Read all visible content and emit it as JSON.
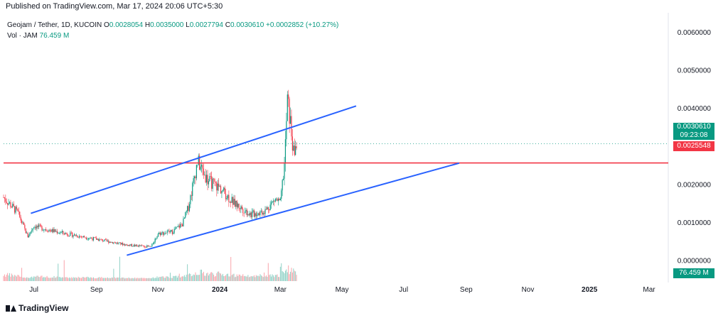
{
  "header": {
    "published": "Published on TradingView.com, Mar 17, 2024 20:06 UTC+5:30"
  },
  "legend": {
    "symbol": "Geojam / Tether, 1D, KUCOIN",
    "open_label": "O",
    "open": "0.0028054",
    "high_label": "H",
    "high": "0.0035000",
    "low_label": "L",
    "low": "0.0027794",
    "close_label": "C",
    "close": "0.0030610",
    "change": "+0.0002852 (+10.27%)",
    "vol_label": "Vol · JAM",
    "vol": "76.459 M"
  },
  "price_tags": {
    "current_price": "0.0030610",
    "countdown": "09:23:08",
    "hline_price": "0.0025548",
    "volume": "76.459 M"
  },
  "footer": {
    "brand": "TradingView"
  },
  "colors": {
    "up": "#089981",
    "down": "#f23645",
    "trendline": "#2962ff",
    "hline": "#f23645"
  },
  "chart_data": {
    "type": "candlestick",
    "x_axis": {
      "tick_labels": [
        "Jul",
        "Sep",
        "Nov",
        "2024",
        "Mar",
        "May",
        "Jul",
        "Sep",
        "Nov",
        "2025",
        "Mar"
      ],
      "tick_dates": [
        "2023-07-01",
        "2023-09-01",
        "2023-11-01",
        "2024-01-01",
        "2024-03-01",
        "2024-05-01",
        "2024-07-01",
        "2024-09-01",
        "2024-11-01",
        "2025-01-01",
        "2025-03-01"
      ],
      "range": [
        "2023-06-01",
        "2025-03-20"
      ]
    },
    "y_axis": {
      "tick_labels": [
        "0.0060000",
        "0.0050000",
        "0.0040000",
        "0.0020000",
        "0.0010000",
        "0.0000000"
      ],
      "tick_values": [
        0.006,
        0.005,
        0.004,
        0.002,
        0.001,
        0.0
      ],
      "range": [
        -0.00055,
        0.0065
      ]
    },
    "price_series": [
      {
        "date": "2023-06-01",
        "value": 0.00165
      },
      {
        "date": "2023-06-15",
        "value": 0.00125
      },
      {
        "date": "2023-06-25",
        "value": 0.00062
      },
      {
        "date": "2023-07-01",
        "value": 0.0009
      },
      {
        "date": "2023-07-15",
        "value": 0.0008
      },
      {
        "date": "2023-08-01",
        "value": 0.0007
      },
      {
        "date": "2023-09-01",
        "value": 0.00055
      },
      {
        "date": "2023-10-01",
        "value": 0.0004
      },
      {
        "date": "2023-10-25",
        "value": 0.00035
      },
      {
        "date": "2023-11-01",
        "value": 0.0007
      },
      {
        "date": "2023-11-15",
        "value": 0.00075
      },
      {
        "date": "2023-11-25",
        "value": 0.00095
      },
      {
        "date": "2023-12-01",
        "value": 0.0014
      },
      {
        "date": "2023-12-10",
        "value": 0.0026
      },
      {
        "date": "2023-12-20",
        "value": 0.0021
      },
      {
        "date": "2024-01-01",
        "value": 0.0019
      },
      {
        "date": "2024-01-15",
        "value": 0.0015
      },
      {
        "date": "2024-02-01",
        "value": 0.0012
      },
      {
        "date": "2024-02-15",
        "value": 0.0013
      },
      {
        "date": "2024-02-25",
        "value": 0.0016
      },
      {
        "date": "2024-03-01",
        "value": 0.0015
      },
      {
        "date": "2024-03-05",
        "value": 0.0025
      },
      {
        "date": "2024-03-08",
        "value": 0.0042
      },
      {
        "date": "2024-03-11",
        "value": 0.0036
      },
      {
        "date": "2024-03-14",
        "value": 0.0028
      },
      {
        "date": "2024-03-17",
        "value": 0.003061
      }
    ],
    "trendlines": [
      {
        "from": {
          "date": "2023-06-28",
          "value": 0.00123
        },
        "to": {
          "date": "2024-05-15",
          "value": 0.00405
        }
      },
      {
        "from": {
          "date": "2023-10-01",
          "value": 0.00013
        },
        "to": {
          "date": "2024-08-25",
          "value": 0.00255
        }
      }
    ],
    "horizontal_line": {
      "value": 0.0025548
    }
  }
}
